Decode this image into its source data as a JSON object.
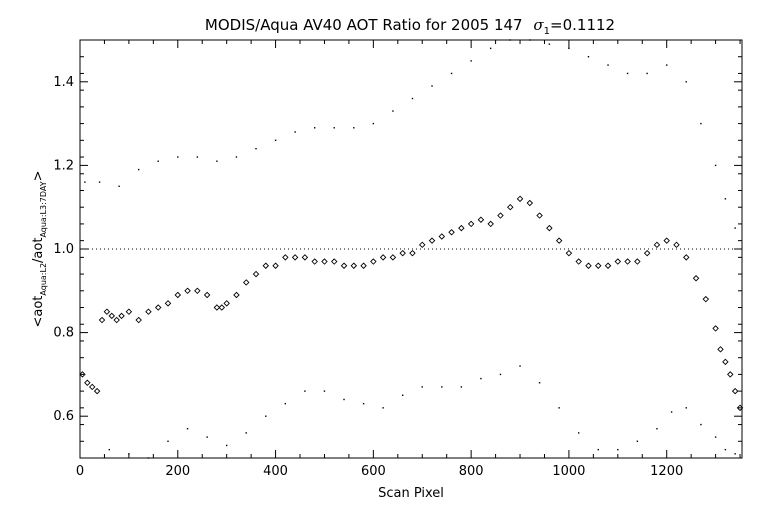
{
  "chart_data": {
    "type": "scatter",
    "title": "MODIS/Aqua AV40 AOT Ratio for 2005 147",
    "title_sigma_value": "=0.1112",
    "xlabel": "Scan Pixel",
    "ylabel": "<aot_Aqua:L2 / aot_Aqua:L3:7DAY>",
    "ylabel_parts": {
      "main": "aot",
      "sub1": "Aqua:L2",
      "sub2": "Aqua:L3:7DAY"
    },
    "xlim": [
      0,
      1354
    ],
    "ylim": [
      0.5,
      1.5
    ],
    "x_ticks": [
      0,
      200,
      400,
      600,
      800,
      1000,
      1200
    ],
    "x_tick_labels": [
      "0",
      "200",
      "400",
      "600",
      "800",
      "1000",
      "1200"
    ],
    "y_ticks": [
      0.6,
      0.8,
      1.0,
      1.2,
      1.4
    ],
    "y_tick_labels": [
      "0.6",
      "0.8",
      "1.0",
      "1.2",
      "1.4"
    ],
    "reference_line": {
      "y": 1.0,
      "style": "dotted"
    },
    "grid": false,
    "legend": "none",
    "marker_color": "#000000",
    "series": [
      {
        "role": "mean",
        "marker": "diamond",
        "x": [
          5,
          15,
          25,
          35,
          45,
          55,
          65,
          75,
          85,
          100,
          120,
          140,
          160,
          180,
          200,
          220,
          240,
          260,
          280,
          290,
          300,
          320,
          340,
          360,
          380,
          400,
          420,
          440,
          460,
          480,
          500,
          520,
          540,
          560,
          580,
          600,
          620,
          640,
          660,
          680,
          700,
          720,
          740,
          760,
          780,
          800,
          820,
          840,
          860,
          880,
          900,
          920,
          940,
          960,
          980,
          1000,
          1020,
          1040,
          1060,
          1080,
          1100,
          1120,
          1140,
          1160,
          1180,
          1200,
          1220,
          1240,
          1260,
          1280,
          1300,
          1310,
          1320,
          1330,
          1340,
          1350
        ],
        "y": [
          0.7,
          0.68,
          0.67,
          0.66,
          0.83,
          0.85,
          0.84,
          0.83,
          0.84,
          0.85,
          0.83,
          0.85,
          0.86,
          0.87,
          0.89,
          0.9,
          0.9,
          0.89,
          0.86,
          0.86,
          0.87,
          0.89,
          0.92,
          0.94,
          0.96,
          0.96,
          0.98,
          0.98,
          0.98,
          0.97,
          0.97,
          0.97,
          0.96,
          0.96,
          0.96,
          0.97,
          0.98,
          0.98,
          0.99,
          0.99,
          1.01,
          1.02,
          1.03,
          1.04,
          1.05,
          1.06,
          1.07,
          1.06,
          1.08,
          1.1,
          1.12,
          1.11,
          1.08,
          1.05,
          1.02,
          0.99,
          0.97,
          0.96,
          0.96,
          0.96,
          0.97,
          0.97,
          0.97,
          0.99,
          1.01,
          1.02,
          1.01,
          0.98,
          0.93,
          0.88,
          0.81,
          0.76,
          0.73,
          0.7,
          0.66,
          0.62
        ]
      },
      {
        "role": "upper (mean + 1 sigma)",
        "marker": "dot",
        "x": [
          10,
          40,
          80,
          120,
          160,
          200,
          240,
          280,
          320,
          360,
          400,
          440,
          480,
          520,
          560,
          600,
          640,
          680,
          720,
          760,
          800,
          840,
          880,
          920,
          960,
          1000,
          1040,
          1080,
          1120,
          1160,
          1200,
          1240,
          1270,
          1300,
          1320,
          1340
        ],
        "y": [
          1.16,
          1.16,
          1.15,
          1.19,
          1.21,
          1.22,
          1.22,
          1.21,
          1.22,
          1.24,
          1.26,
          1.28,
          1.29,
          1.29,
          1.29,
          1.3,
          1.33,
          1.36,
          1.39,
          1.42,
          1.45,
          1.48,
          1.5,
          1.5,
          1.49,
          1.48,
          1.46,
          1.44,
          1.42,
          1.42,
          1.44,
          1.4,
          1.3,
          1.2,
          1.12,
          1.05
        ]
      },
      {
        "role": "lower (mean - 1 sigma)",
        "marker": "dot",
        "x": [
          60,
          100,
          140,
          180,
          220,
          260,
          300,
          340,
          380,
          420,
          460,
          500,
          540,
          580,
          620,
          660,
          700,
          740,
          780,
          820,
          860,
          900,
          940,
          980,
          1020,
          1060,
          1100,
          1140,
          1180,
          1210,
          1240,
          1270,
          1300,
          1320,
          1340
        ],
        "y": [
          0.52,
          0.51,
          0.5,
          0.54,
          0.57,
          0.55,
          0.53,
          0.56,
          0.6,
          0.63,
          0.66,
          0.66,
          0.64,
          0.63,
          0.62,
          0.65,
          0.67,
          0.67,
          0.67,
          0.69,
          0.7,
          0.72,
          0.68,
          0.62,
          0.56,
          0.52,
          0.52,
          0.54,
          0.57,
          0.61,
          0.62,
          0.58,
          0.55,
          0.52,
          0.51
        ]
      }
    ]
  }
}
